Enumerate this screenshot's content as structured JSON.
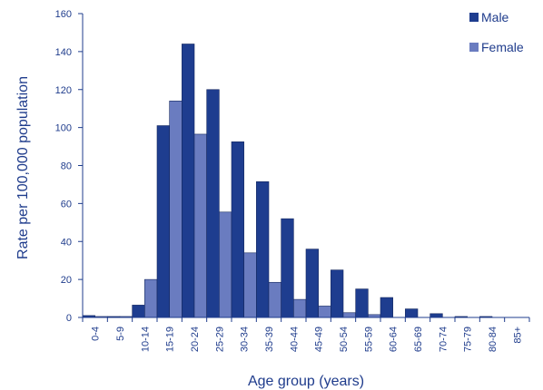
{
  "chart_data": {
    "type": "bar",
    "title": "",
    "xlabel": "Age group (years)",
    "ylabel": "Rate per 100,000 population",
    "ylim": [
      0,
      160
    ],
    "yticks": [
      0,
      20,
      40,
      60,
      80,
      100,
      120,
      140,
      160
    ],
    "grid": false,
    "legend_position": "top-right",
    "categories": [
      "0-4",
      "5-9",
      "10-14",
      "15-19",
      "20-24",
      "25-29",
      "30-34",
      "35-39",
      "40-44",
      "45-49",
      "50-54",
      "55-59",
      "60-64",
      "65-69",
      "70-74",
      "75-79",
      "80-84",
      "85+"
    ],
    "series": [
      {
        "name": "Male",
        "color": "#1e3d8f",
        "values": [
          1,
          0.5,
          6.5,
          101,
          144,
          120,
          92.5,
          71.5,
          52,
          36,
          25,
          15,
          10.5,
          4.5,
          2,
          0.5,
          0.5,
          0
        ]
      },
      {
        "name": "Female",
        "color": "#6a7cc0",
        "values": [
          0.5,
          0.5,
          20,
          114,
          96.5,
          55.5,
          34,
          18.5,
          9.5,
          6,
          2.5,
          1.5,
          0,
          0,
          0,
          0,
          0,
          0
        ]
      }
    ]
  }
}
